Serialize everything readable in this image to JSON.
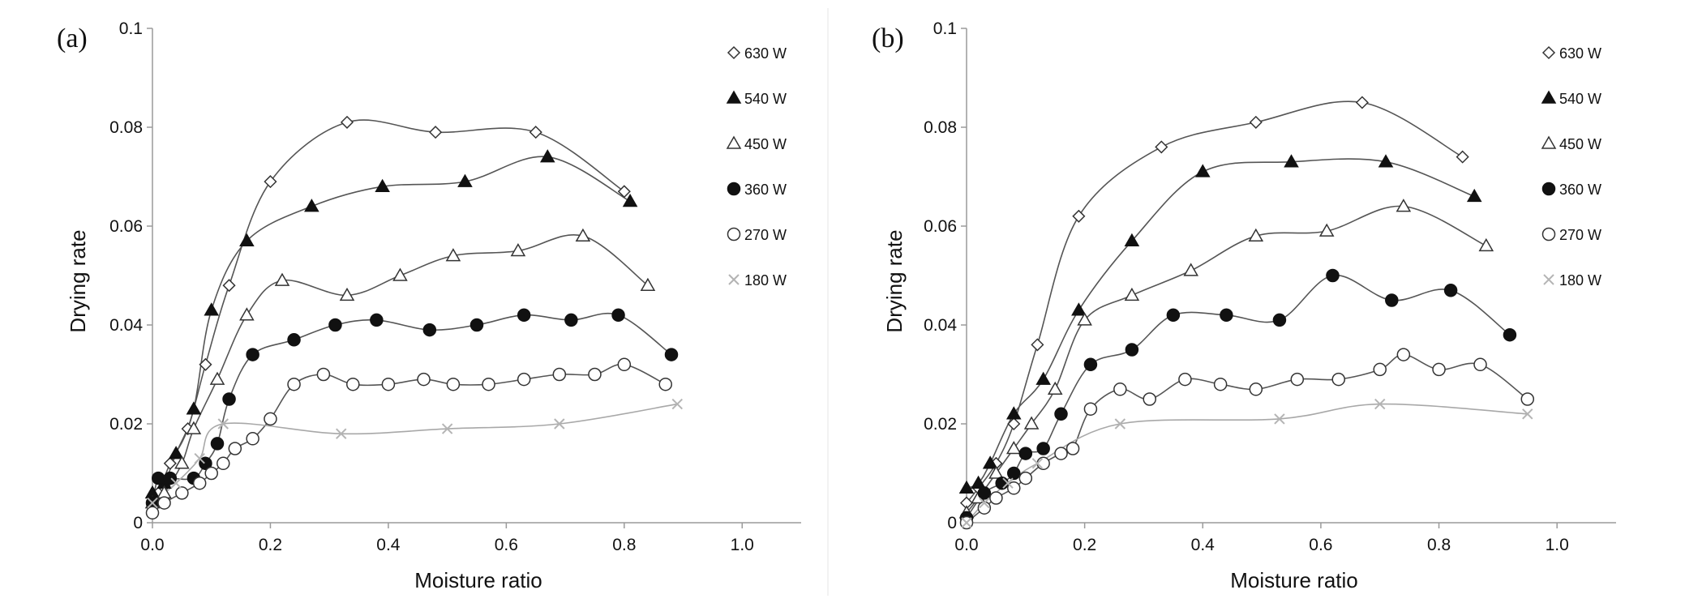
{
  "chart_data": [
    {
      "type": "line",
      "panel_label": "(a)",
      "xlabel": "Moisture ratio",
      "ylabel": "Drying rate",
      "xlim": [
        0,
        1.1
      ],
      "ylim": [
        0,
        0.1
      ],
      "x_ticks": [
        "0.0",
        "0.2",
        "0.4",
        "0.6",
        "0.8",
        "1.0"
      ],
      "y_ticks": [
        "0",
        "0.02",
        "0.04",
        "0.06",
        "0.08",
        "0.1"
      ],
      "grid": false,
      "legend_position": "right",
      "series": [
        {
          "name": "630 W",
          "marker": "diamond-open",
          "x": [
            0.0,
            0.01,
            0.03,
            0.06,
            0.09,
            0.13,
            0.2,
            0.33,
            0.48,
            0.65,
            0.8
          ],
          "y": [
            0.004,
            0.006,
            0.012,
            0.019,
            0.032,
            0.048,
            0.069,
            0.081,
            0.079,
            0.079,
            0.067
          ]
        },
        {
          "name": "540 W",
          "marker": "triangle-filled",
          "x": [
            0.0,
            0.02,
            0.04,
            0.07,
            0.1,
            0.16,
            0.27,
            0.39,
            0.53,
            0.67,
            0.81
          ],
          "y": [
            0.006,
            0.008,
            0.014,
            0.023,
            0.043,
            0.057,
            0.064,
            0.068,
            0.069,
            0.074,
            0.065
          ]
        },
        {
          "name": "450 W",
          "marker": "triangle-open",
          "x": [
            0.0,
            0.02,
            0.05,
            0.07,
            0.11,
            0.16,
            0.22,
            0.33,
            0.42,
            0.51,
            0.62,
            0.73,
            0.84
          ],
          "y": [
            0.004,
            0.006,
            0.012,
            0.019,
            0.029,
            0.042,
            0.049,
            0.046,
            0.05,
            0.054,
            0.055,
            0.058,
            0.048
          ]
        },
        {
          "name": "360 W",
          "marker": "circle-filled",
          "x": [
            0.0,
            0.01,
            0.03,
            0.07,
            0.09,
            0.11,
            0.13,
            0.17,
            0.24,
            0.31,
            0.38,
            0.47,
            0.55,
            0.63,
            0.71,
            0.79,
            0.88
          ],
          "y": [
            0.004,
            0.009,
            0.009,
            0.009,
            0.012,
            0.016,
            0.025,
            0.034,
            0.037,
            0.04,
            0.041,
            0.039,
            0.04,
            0.042,
            0.041,
            0.042,
            0.034
          ]
        },
        {
          "name": "270 W",
          "marker": "circle-open",
          "x": [
            0.0,
            0.02,
            0.05,
            0.08,
            0.1,
            0.12,
            0.14,
            0.17,
            0.2,
            0.24,
            0.29,
            0.34,
            0.4,
            0.46,
            0.51,
            0.57,
            0.63,
            0.69,
            0.75,
            0.8,
            0.87
          ],
          "y": [
            0.002,
            0.004,
            0.006,
            0.008,
            0.01,
            0.012,
            0.015,
            0.017,
            0.021,
            0.028,
            0.03,
            0.028,
            0.028,
            0.029,
            0.028,
            0.028,
            0.029,
            0.03,
            0.03,
            0.032,
            0.028
          ]
        },
        {
          "name": "180 W",
          "marker": "x",
          "x": [
            0.0,
            0.04,
            0.08,
            0.12,
            0.32,
            0.5,
            0.69,
            0.89
          ],
          "y": [
            0.004,
            0.008,
            0.013,
            0.02,
            0.018,
            0.019,
            0.02,
            0.024
          ]
        }
      ]
    },
    {
      "type": "line",
      "panel_label": "(b)",
      "xlabel": "Moisture ratio",
      "ylabel": "Drying rate",
      "xlim": [
        0,
        1.1
      ],
      "ylim": [
        0,
        0.1
      ],
      "x_ticks": [
        "0.0",
        "0.2",
        "0.4",
        "0.6",
        "0.8",
        "1.0"
      ],
      "y_ticks": [
        "0",
        "0.02",
        "0.04",
        "0.06",
        "0.08",
        "0.1"
      ],
      "grid": false,
      "legend_position": "right",
      "series": [
        {
          "name": "630 W",
          "marker": "diamond-open",
          "x": [
            0.0,
            0.02,
            0.05,
            0.08,
            0.12,
            0.19,
            0.33,
            0.49,
            0.67,
            0.84
          ],
          "y": [
            0.004,
            0.007,
            0.012,
            0.02,
            0.036,
            0.062,
            0.076,
            0.081,
            0.085,
            0.074
          ]
        },
        {
          "name": "540 W",
          "marker": "triangle-filled",
          "x": [
            0.0,
            0.02,
            0.04,
            0.08,
            0.13,
            0.19,
            0.28,
            0.4,
            0.55,
            0.71,
            0.86
          ],
          "y": [
            0.007,
            0.008,
            0.012,
            0.022,
            0.029,
            0.043,
            0.057,
            0.071,
            0.073,
            0.073,
            0.066
          ]
        },
        {
          "name": "450 W",
          "marker": "triangle-open",
          "x": [
            0.0,
            0.02,
            0.05,
            0.08,
            0.11,
            0.15,
            0.2,
            0.28,
            0.38,
            0.49,
            0.61,
            0.74,
            0.88
          ],
          "y": [
            0.002,
            0.005,
            0.01,
            0.015,
            0.02,
            0.027,
            0.041,
            0.046,
            0.051,
            0.058,
            0.059,
            0.064,
            0.056
          ]
        },
        {
          "name": "360 W",
          "marker": "circle-filled",
          "x": [
            0.0,
            0.03,
            0.06,
            0.08,
            0.1,
            0.13,
            0.16,
            0.21,
            0.28,
            0.35,
            0.44,
            0.53,
            0.62,
            0.72,
            0.82,
            0.92
          ],
          "y": [
            0.001,
            0.006,
            0.008,
            0.01,
            0.014,
            0.015,
            0.022,
            0.032,
            0.035,
            0.042,
            0.042,
            0.041,
            0.05,
            0.045,
            0.047,
            0.038
          ]
        },
        {
          "name": "270 W",
          "marker": "circle-open",
          "x": [
            0.0,
            0.03,
            0.05,
            0.08,
            0.1,
            0.13,
            0.16,
            0.18,
            0.21,
            0.26,
            0.31,
            0.37,
            0.43,
            0.49,
            0.56,
            0.63,
            0.7,
            0.74,
            0.8,
            0.87,
            0.95
          ],
          "y": [
            0.0,
            0.003,
            0.005,
            0.007,
            0.009,
            0.012,
            0.014,
            0.015,
            0.023,
            0.027,
            0.025,
            0.029,
            0.028,
            0.027,
            0.029,
            0.029,
            0.031,
            0.034,
            0.031,
            0.032,
            0.025
          ]
        },
        {
          "name": "180 W",
          "marker": "x",
          "x": [
            0.0,
            0.03,
            0.07,
            0.12,
            0.26,
            0.53,
            0.7,
            0.95
          ],
          "y": [
            0.0,
            0.004,
            0.008,
            0.012,
            0.02,
            0.021,
            0.024,
            0.022
          ]
        }
      ]
    }
  ]
}
